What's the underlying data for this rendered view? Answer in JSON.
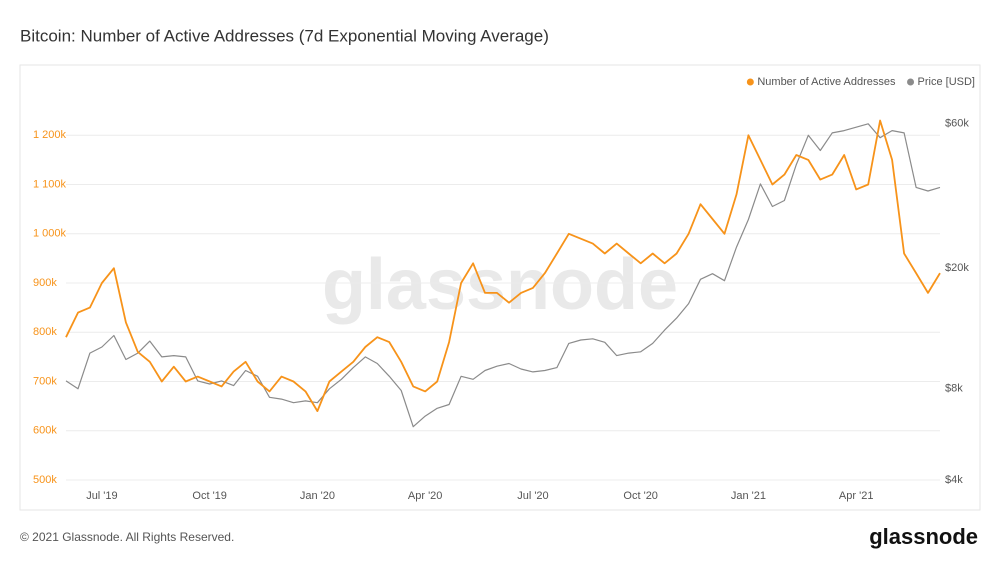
{
  "chart_data": {
    "type": "line",
    "title": "Bitcoin: Number of Active Addresses (7d Exponential Moving Average)",
    "watermark": "glassnode",
    "footer": "© 2021 Glassnode. All Rights Reserved.",
    "logo": "glassnode",
    "categories": [
      null,
      null,
      null,
      "Jul '19",
      null,
      null,
      null,
      null,
      null,
      null,
      null,
      null,
      "Oct '19",
      null,
      null,
      null,
      null,
      null,
      null,
      null,
      null,
      "Jan '20",
      null,
      null,
      null,
      null,
      null,
      null,
      null,
      null,
      "Apr '20",
      null,
      null,
      null,
      null,
      null,
      null,
      null,
      null,
      "Jul '20",
      null,
      null,
      null,
      null,
      null,
      null,
      null,
      null,
      "Oct '20",
      null,
      null,
      null,
      null,
      null,
      null,
      null,
      null,
      "Jan '21",
      null,
      null,
      null,
      null,
      null,
      null,
      null,
      null,
      "Apr '21",
      null,
      null,
      null,
      null,
      null,
      null,
      null
    ],
    "series": [
      {
        "name": "Number of Active Addresses",
        "color": "#f7931a",
        "values": [
          790000,
          840000,
          850000,
          900000,
          930000,
          820000,
          760000,
          740000,
          700000,
          730000,
          700000,
          710000,
          700000,
          690000,
          720000,
          740000,
          700000,
          680000,
          710000,
          700000,
          680000,
          640000,
          700000,
          720000,
          740000,
          770000,
          790000,
          780000,
          740000,
          690000,
          680000,
          700000,
          780000,
          900000,
          940000,
          880000,
          880000,
          860000,
          880000,
          890000,
          920000,
          960000,
          1000000,
          990000,
          980000,
          960000,
          980000,
          960000,
          940000,
          960000,
          940000,
          960000,
          1000000,
          1060000,
          1030000,
          1000000,
          1080000,
          1200000,
          1150000,
          1100000,
          1120000,
          1160000,
          1150000,
          1110000,
          1120000,
          1160000,
          1090000,
          1100000,
          1230000,
          1150000,
          960000,
          920000,
          880000,
          920000
        ]
      },
      {
        "name": "Price [USD]",
        "color": "#8b8b8b",
        "axis": "y2",
        "values": [
          8500,
          8000,
          10500,
          11000,
          12000,
          10000,
          10500,
          11500,
          10200,
          10300,
          10200,
          8500,
          8300,
          8500,
          8200,
          9200,
          8800,
          7500,
          7400,
          7200,
          7300,
          7200,
          8000,
          8600,
          9400,
          10200,
          9700,
          8800,
          7900,
          6000,
          6500,
          6900,
          7100,
          8800,
          8600,
          9200,
          9500,
          9700,
          9300,
          9100,
          9200,
          9400,
          11300,
          11600,
          11700,
          11400,
          10300,
          10500,
          10600,
          11300,
          12500,
          13700,
          15300,
          18400,
          19200,
          18200,
          23500,
          29000,
          38000,
          32000,
          33500,
          44000,
          55000,
          49000,
          56000,
          57000,
          58500,
          60000,
          54000,
          57000,
          56000,
          37000,
          36000,
          37000
        ]
      }
    ],
    "ylim": [
      500000,
      1300000
    ],
    "yticks": [
      {
        "value": 500000,
        "label": "500k"
      },
      {
        "value": 600000,
        "label": "600k"
      },
      {
        "value": 700000,
        "label": "700k"
      },
      {
        "value": 800000,
        "label": "800k"
      },
      {
        "value": 900000,
        "label": "900k"
      },
      {
        "value": 1000000,
        "label": "1 000k"
      },
      {
        "value": 1100000,
        "label": "1 100k"
      },
      {
        "value": 1200000,
        "label": "1 200k"
      }
    ],
    "y2lim": [
      4000,
      80000
    ],
    "y2ticks": [
      {
        "value": 4000,
        "label": "$4k"
      },
      {
        "value": 8000,
        "label": "$8k"
      },
      {
        "value": 20000,
        "label": "$20k"
      },
      {
        "value": 60000,
        "label": "$60k"
      }
    ],
    "y2log": true,
    "grid": true,
    "legend": "top-right"
  }
}
